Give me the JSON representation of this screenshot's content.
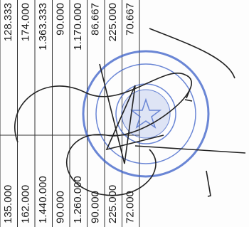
{
  "table": {
    "rows": [
      [
        "135.000",
        "128.333"
      ],
      [
        "162.000",
        "174.000"
      ],
      [
        "1.440.000",
        "1.363.333"
      ],
      [
        "90.000",
        "90.000"
      ],
      [
        "1.260.000",
        "1.170.000"
      ],
      [
        "90.000",
        "86.667"
      ],
      [
        "225.000",
        "225.000"
      ],
      [
        "72.000",
        "70.667"
      ]
    ]
  }
}
